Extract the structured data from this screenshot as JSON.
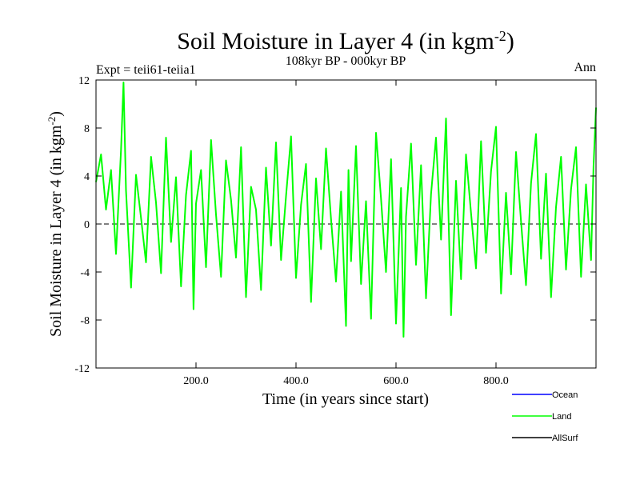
{
  "chart_data": {
    "type": "line",
    "title": "Soil Moisture in Layer 4 (in kgm",
    "title_sup": "-2",
    "title_close": ")",
    "subtitle": "108kyr BP - 000kyr BP",
    "left_label": "Expt = teii61-teiia1",
    "right_label": "Ann",
    "xlabel": "Time (in years since start)",
    "ylabel": "Soil Moisture in Layer 4 (in kgm",
    "ylabel_sup": "-2",
    "ylabel_close": ")",
    "xlim": [
      0,
      1000
    ],
    "ylim": [
      -12,
      12
    ],
    "xticks": [
      {
        "value": 200,
        "label": "200.0"
      },
      {
        "value": 400,
        "label": "400.0"
      },
      {
        "value": 600,
        "label": "600.0"
      },
      {
        "value": 800,
        "label": "800.0"
      }
    ],
    "yticks": [
      {
        "value": 12,
        "label": "12"
      },
      {
        "value": 8,
        "label": "8"
      },
      {
        "value": 4,
        "label": "4"
      },
      {
        "value": 0,
        "label": "0"
      },
      {
        "value": -4,
        "label": "-4"
      },
      {
        "value": -8,
        "label": "-8"
      },
      {
        "value": -12,
        "label": "-12"
      }
    ],
    "zero_line": "dashed",
    "legend_placement": "bottom-right",
    "series": [
      {
        "name": "Ocean",
        "color": "#0000ff",
        "values": []
      },
      {
        "name": "Land",
        "color": "#00ff00",
        "x": [
          0,
          10,
          20,
          30,
          40,
          50,
          55,
          60,
          70,
          80,
          90,
          100,
          110,
          120,
          130,
          140,
          150,
          160,
          170,
          180,
          190,
          195,
          200,
          210,
          220,
          230,
          240,
          250,
          260,
          270,
          280,
          290,
          300,
          310,
          320,
          330,
          340,
          350,
          360,
          370,
          380,
          390,
          400,
          410,
          420,
          430,
          440,
          450,
          460,
          470,
          480,
          490,
          500,
          505,
          510,
          520,
          530,
          540,
          550,
          560,
          570,
          580,
          590,
          600,
          610,
          615,
          620,
          630,
          640,
          650,
          660,
          670,
          680,
          690,
          700,
          710,
          720,
          730,
          740,
          750,
          760,
          770,
          780,
          790,
          800,
          810,
          820,
          830,
          840,
          850,
          860,
          870,
          880,
          890,
          900,
          910,
          920,
          930,
          940,
          950,
          960,
          970,
          980,
          990,
          995,
          1000
        ],
        "values": [
          3.5,
          5.8,
          1.2,
          4.5,
          -2.5,
          6.2,
          11.8,
          2.8,
          -5.3,
          4.1,
          0.5,
          -3.2,
          5.6,
          1.8,
          -4.1,
          7.2,
          -1.5,
          3.9,
          -5.2,
          2.4,
          6.1,
          -7.1,
          1.7,
          4.5,
          -3.6,
          7.0,
          0.8,
          -4.4,
          5.3,
          2.0,
          -2.8,
          6.4,
          -6.1,
          3.1,
          1.2,
          -5.5,
          4.7,
          -1.8,
          6.8,
          -3.0,
          2.3,
          7.3,
          -4.5,
          1.6,
          5.0,
          -6.5,
          3.8,
          -2.1,
          6.3,
          0.4,
          -4.8,
          2.7,
          -8.5,
          4.5,
          -3.1,
          6.5,
          -5.0,
          1.9,
          -7.9,
          7.6,
          2.2,
          -4.0,
          5.4,
          -8.3,
          3.0,
          -9.4,
          0.6,
          6.7,
          -3.4,
          4.9,
          -6.2,
          2.5,
          7.2,
          -1.3,
          8.8,
          -7.6,
          3.6,
          -4.6,
          5.8,
          0.9,
          -3.7,
          6.9,
          -2.4,
          4.4,
          8.1,
          -5.8,
          2.6,
          -4.2,
          6.0,
          0.2,
          -5.1,
          3.4,
          7.5,
          -2.9,
          4.2,
          -6.1,
          1.4,
          5.6,
          -3.8,
          2.9,
          6.4,
          -4.4,
          3.3,
          -3.0,
          4.8,
          9.7
        ]
      },
      {
        "name": "AllSurf",
        "color": "#000000",
        "values": []
      }
    ]
  }
}
